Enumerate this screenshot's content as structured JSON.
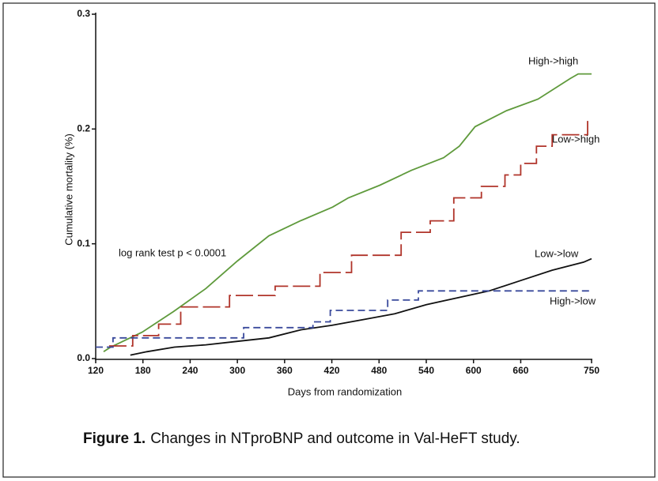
{
  "chart_data": {
    "type": "line",
    "xlabel": "Days from randomization",
    "ylabel": "Cumulative mortality (%)",
    "annotation": "log rank test p < 0.0001",
    "caption_label": "Figure 1.",
    "caption_text": "Changes in NTproBNP and outcome in Val-HeFT study.",
    "xlim": [
      120,
      750
    ],
    "xticks": [
      120,
      180,
      240,
      300,
      360,
      420,
      480,
      540,
      600,
      660,
      750
    ],
    "ylim": [
      0,
      0.3
    ],
    "yticks": [
      {
        "value": 0,
        "label": "0.0"
      },
      0.1,
      0.2,
      0.3
    ],
    "series": [
      {
        "name": "High->high",
        "color": "#5f9a3c",
        "line_style": "solid",
        "x": [
          130,
          139,
          179,
          219,
          260,
          300,
          340,
          380,
          421,
          441,
          481,
          521,
          562,
          582,
          602,
          642,
          682,
          723,
          733,
          750
        ],
        "values": [
          0.006,
          0.01,
          0.023,
          0.041,
          0.061,
          0.085,
          0.107,
          0.12,
          0.132,
          0.14,
          0.151,
          0.164,
          0.175,
          0.185,
          0.202,
          0.216,
          0.226,
          0.244,
          0.248,
          0.248
        ]
      },
      {
        "name": "Low->high",
        "color": "#b0342a",
        "line_style": "long-dash",
        "x": [
          137,
          167,
          167,
          200,
          200,
          228,
          228,
          290,
          290,
          348,
          348,
          405,
          405,
          445,
          445,
          508,
          508,
          545,
          545,
          575,
          575,
          610,
          610,
          640,
          640,
          660,
          660,
          680,
          680,
          700,
          700,
          745,
          745
        ],
        "values": [
          0.011,
          0.011,
          0.02,
          0.02,
          0.03,
          0.03,
          0.045,
          0.045,
          0.055,
          0.055,
          0.063,
          0.063,
          0.075,
          0.075,
          0.09,
          0.09,
          0.11,
          0.11,
          0.12,
          0.12,
          0.14,
          0.14,
          0.15,
          0.15,
          0.16,
          0.16,
          0.17,
          0.17,
          0.185,
          0.185,
          0.195,
          0.195,
          0.21
        ]
      },
      {
        "name": "Low->low",
        "color": "#111111",
        "line_style": "solid",
        "x": [
          164,
          185,
          220,
          260,
          300,
          340,
          380,
          420,
          460,
          500,
          540,
          580,
          620,
          660,
          700,
          740,
          750
        ],
        "values": [
          0.003,
          0.006,
          0.01,
          0.012,
          0.015,
          0.018,
          0.025,
          0.029,
          0.034,
          0.039,
          0.047,
          0.053,
          0.059,
          0.068,
          0.077,
          0.084,
          0.087
        ]
      },
      {
        "name": "High->low",
        "color": "#3a4a9c",
        "line_style": "short-dash",
        "x": [
          120,
          142,
          142,
          308,
          308,
          396,
          396,
          418,
          418,
          491,
          491,
          530,
          530,
          750
        ],
        "values": [
          0.01,
          0.01,
          0.018,
          0.018,
          0.027,
          0.027,
          0.032,
          0.032,
          0.042,
          0.042,
          0.051,
          0.051,
          0.059,
          0.059
        ]
      }
    ]
  }
}
